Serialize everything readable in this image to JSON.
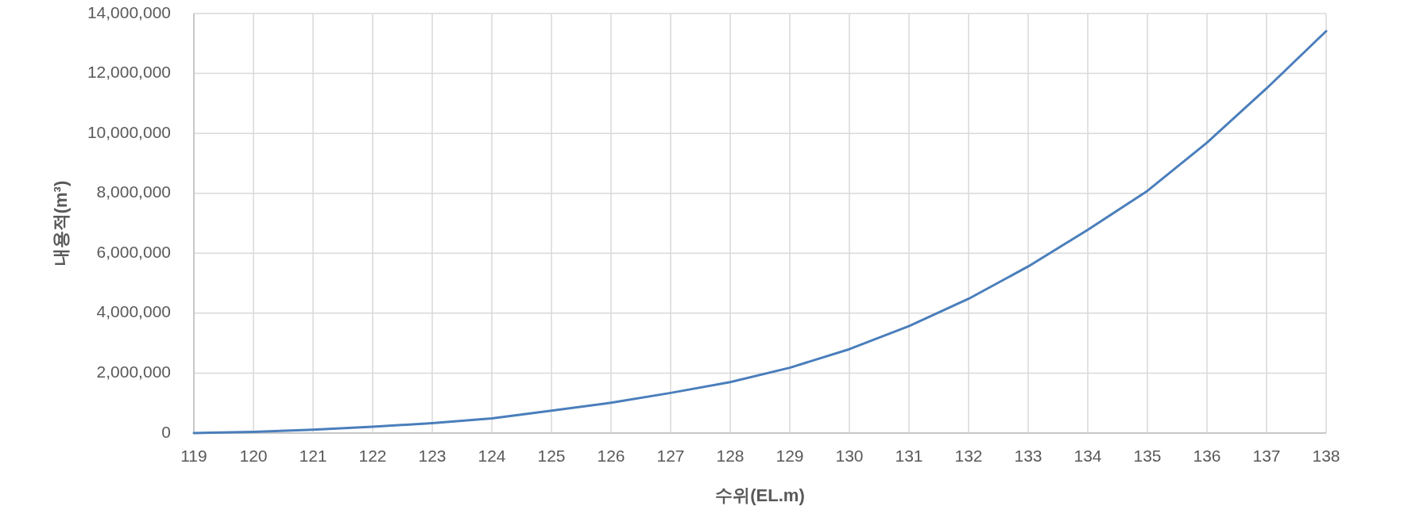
{
  "chart_data": {
    "type": "line",
    "xlabel": "수위(EL.m)",
    "ylabel": "내용적(m³)",
    "x": [
      119,
      120,
      121,
      122,
      123,
      124,
      125,
      126,
      127,
      128,
      129,
      130,
      131,
      132,
      133,
      134,
      135,
      136,
      137,
      138
    ],
    "series": [
      {
        "color": "#4a7ebb",
        "values": [
          0,
          40000,
          110000,
          210000,
          330000,
          490000,
          750000,
          1010000,
          1340000,
          1700000,
          2180000,
          2800000,
          3570000,
          4480000,
          5560000,
          6780000,
          8080000,
          9690000,
          11500000,
          13410000
        ]
      }
    ],
    "xlim": [
      119,
      138
    ],
    "ylim": [
      0,
      14000000
    ],
    "xticks": [
      119,
      120,
      121,
      122,
      123,
      124,
      125,
      126,
      127,
      128,
      129,
      130,
      131,
      132,
      133,
      134,
      135,
      136,
      137,
      138
    ],
    "yticks": [
      {
        "value": 0,
        "label": "0"
      },
      {
        "value": 2000000,
        "label": "2,000,000"
      },
      {
        "value": 4000000,
        "label": "4,000,000"
      },
      {
        "value": 6000000,
        "label": "6,000,000"
      },
      {
        "value": 8000000,
        "label": "8,000,000"
      },
      {
        "value": 10000000,
        "label": "10,000,000"
      },
      {
        "value": 12000000,
        "label": "12,000,000"
      },
      {
        "value": 14000000,
        "label": "14,000,000"
      }
    ],
    "grid": true,
    "line_style": "solid"
  }
}
